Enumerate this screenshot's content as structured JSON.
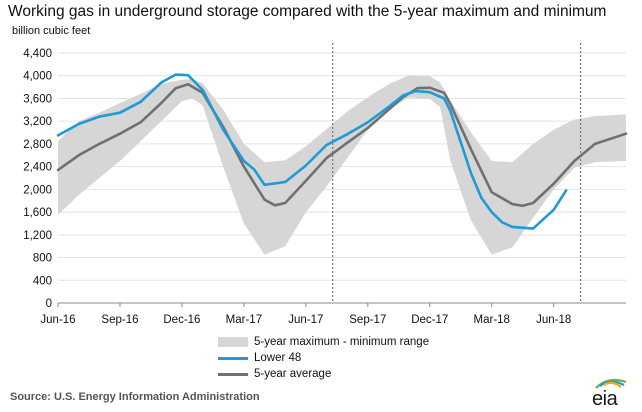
{
  "chart_data": {
    "type": "line",
    "title": "Working gas in underground storage compared with the 5-year maximum and minimum",
    "ylabel": "billion cubic feet",
    "ylim": [
      0,
      4400
    ],
    "yticks": [
      "0",
      "400",
      "800",
      "1,200",
      "1,600",
      "2,000",
      "2,400",
      "2,800",
      "3,200",
      "3,600",
      "4,000",
      "4,400"
    ],
    "xticks": [
      "Jun-16",
      "Sep-16",
      "Dec-16",
      "Mar-17",
      "Jun-17",
      "Sep-17",
      "Dec-17",
      "Mar-18",
      "Jun-18"
    ],
    "xlim": [
      0,
      27.5
    ],
    "grid": "horizontal",
    "legend_position": "bottom-center",
    "vertical_markers": [
      13.3,
      25.3
    ],
    "series": [
      {
        "name": "5-year maximum - minimum range",
        "kind": "band",
        "color": "#d6d6d6",
        "x": [
          0,
          1,
          2,
          3,
          4,
          5,
          6,
          6.5,
          7,
          8,
          9,
          10,
          11,
          12,
          13,
          14,
          15,
          16,
          17,
          18,
          18.5,
          19,
          20,
          21,
          22,
          23,
          24,
          25,
          26,
          27.5
        ],
        "upper": [
          2850,
          3200,
          3350,
          3520,
          3680,
          3860,
          3930,
          3940,
          3870,
          3400,
          2800,
          2480,
          2510,
          2760,
          3060,
          3370,
          3620,
          3850,
          4010,
          3990,
          3880,
          3560,
          3000,
          2500,
          2480,
          2800,
          3050,
          3230,
          3290,
          3320
        ],
        "lower": [
          1550,
          1900,
          2200,
          2500,
          2850,
          3200,
          3550,
          3600,
          3480,
          2400,
          1400,
          850,
          1000,
          1600,
          2050,
          2550,
          3050,
          3400,
          3620,
          3590,
          3450,
          2500,
          1450,
          850,
          980,
          1500,
          2000,
          2380,
          2480,
          2500
        ]
      },
      {
        "name": "Lower 48",
        "color": "#1e9bd7",
        "x": [
          0,
          1,
          2,
          3,
          4,
          5,
          5.7,
          6.3,
          7,
          8,
          9,
          9.5,
          10,
          11,
          12,
          13,
          14,
          15,
          16,
          16.7,
          17.3,
          18,
          18.7,
          19,
          20,
          20.5,
          21,
          21.5,
          22,
          23,
          24,
          24.6
        ],
        "values": [
          2950,
          3150,
          3280,
          3350,
          3540,
          3880,
          4020,
          4010,
          3750,
          3050,
          2500,
          2350,
          2080,
          2130,
          2420,
          2780,
          2970,
          3180,
          3450,
          3650,
          3730,
          3710,
          3600,
          3380,
          2280,
          1850,
          1600,
          1420,
          1340,
          1310,
          1640,
          1980
        ]
      },
      {
        "name": "5-year average",
        "color": "#707070",
        "x": [
          0,
          1,
          2,
          3,
          4,
          5,
          5.7,
          6.3,
          7,
          8,
          9,
          10,
          10.5,
          11,
          12,
          13,
          14,
          15,
          16,
          16.7,
          17.4,
          18,
          18.7,
          19,
          20,
          21,
          22,
          22.5,
          23,
          24,
          25,
          26,
          27.5
        ],
        "values": [
          2340,
          2600,
          2800,
          2980,
          3180,
          3520,
          3780,
          3850,
          3700,
          3100,
          2400,
          1820,
          1720,
          1760,
          2150,
          2550,
          2820,
          3080,
          3400,
          3620,
          3780,
          3790,
          3700,
          3500,
          2700,
          1950,
          1740,
          1710,
          1760,
          2100,
          2500,
          2800,
          2980
        ]
      }
    ]
  },
  "source": "Source:  U.S. Energy Information Administration",
  "logo_text": "eia"
}
